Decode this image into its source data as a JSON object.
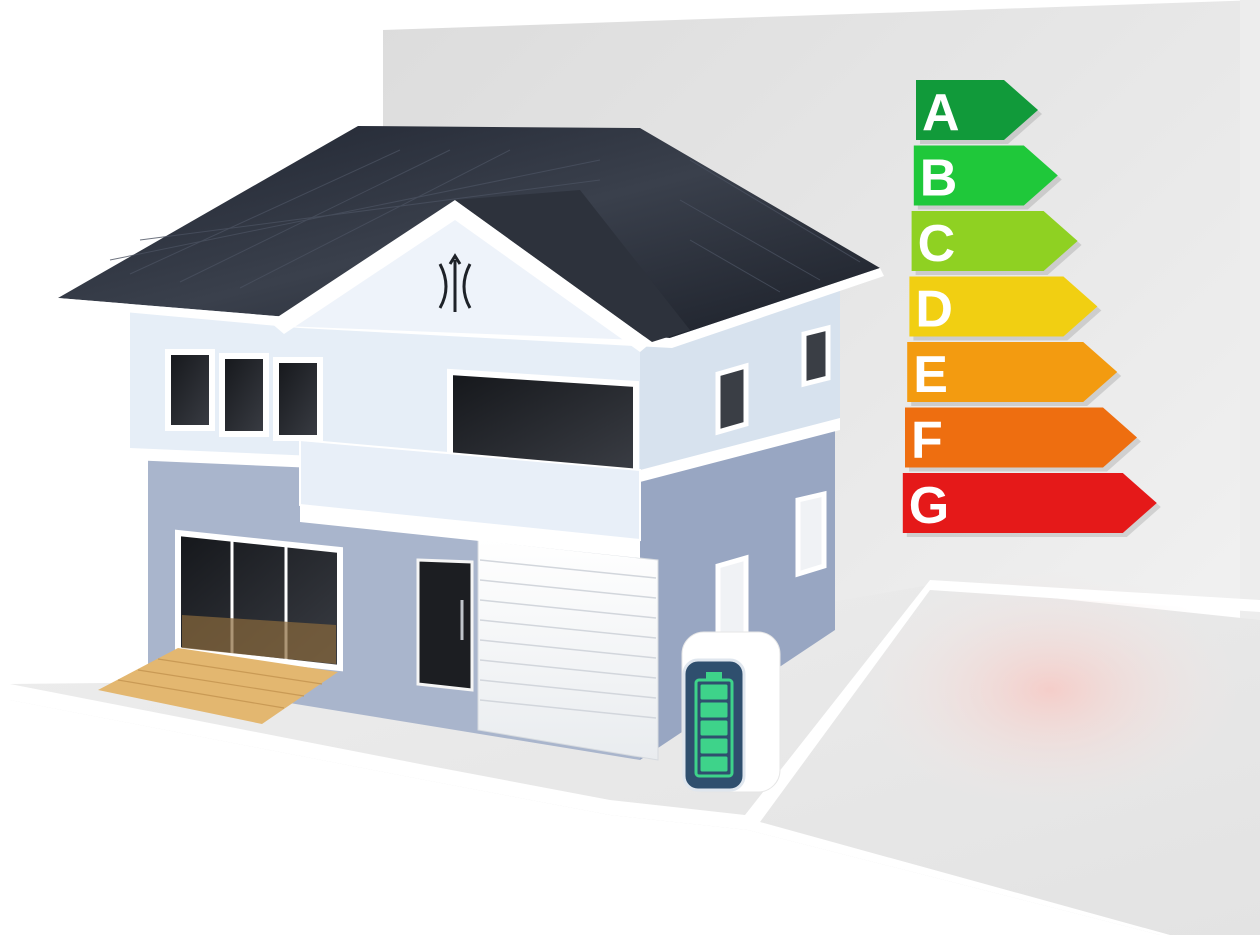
{
  "scene": {
    "subject": "house",
    "features": [
      "solar-roof",
      "home-battery",
      "energy-rating-scale"
    ]
  },
  "energy_rating": {
    "classes": [
      {
        "label": "A",
        "color": "#119a3a"
      },
      {
        "label": "B",
        "color": "#1fc83a"
      },
      {
        "label": "C",
        "color": "#8fd122"
      },
      {
        "label": "D",
        "color": "#f1cf12"
      },
      {
        "label": "E",
        "color": "#f39b10"
      },
      {
        "label": "F",
        "color": "#ee6e10"
      },
      {
        "label": "G",
        "color": "#e51919"
      }
    ]
  },
  "battery": {
    "charge_level": 1.0,
    "color": "#3ed38a"
  },
  "colors": {
    "wall": "#eeeeee",
    "floor": "#ececec",
    "upper_siding": "#e6eef7",
    "lower_siding": "#a9b5cc",
    "roof": "#2a2f38",
    "trim": "#ffffff",
    "deck": "#e3b770"
  },
  "icons": [
    "energy-rating-arrow",
    "battery-icon",
    "emblem-icon"
  ]
}
